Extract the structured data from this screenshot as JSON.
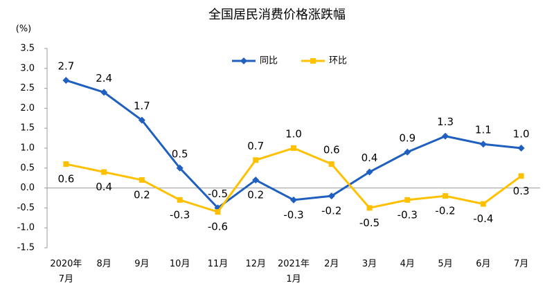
{
  "chart_data": {
    "type": "line",
    "title": "全国居民消费价格涨跌幅",
    "y_label": "(%)",
    "categories": [
      "2020年\n7月",
      "8月",
      "9月",
      "10月",
      "11月",
      "12月",
      "2021年\n1月",
      "2月",
      "3月",
      "4月",
      "5月",
      "6月",
      "7月"
    ],
    "series": [
      {
        "name": "同比",
        "color": "#1f5fc0",
        "marker": "diamond",
        "values": [
          2.7,
          2.4,
          1.7,
          0.5,
          -0.5,
          0.2,
          -0.3,
          -0.2,
          0.4,
          0.9,
          1.3,
          1.1,
          1.0
        ],
        "value_labels": [
          "2.7",
          "2.4",
          "1.7",
          "0.5",
          "-0.5",
          "0.2",
          "-0.3",
          "-0.2",
          "0.4",
          "0.9",
          "1.3",
          "1.1",
          "1.0"
        ]
      },
      {
        "name": "环比",
        "color": "#ffc000",
        "marker": "square",
        "values": [
          0.6,
          0.4,
          0.2,
          -0.3,
          -0.6,
          0.7,
          1.0,
          0.6,
          -0.5,
          -0.3,
          -0.2,
          -0.4,
          0.3
        ],
        "value_labels": [
          "0.6",
          "0.4",
          "0.2",
          "-0.3",
          "-0.6",
          "0.7",
          "1.0",
          "0.6",
          "-0.5",
          "-0.3",
          "-0.2",
          "-0.4",
          "0.3"
        ]
      }
    ],
    "ylim": [
      -1.5,
      3.5
    ],
    "yticks": [
      -1.5,
      {
        "value": -1,
        "label": "-1.0"
      },
      -0.5,
      {
        "value": 0,
        "label": "0.0"
      },
      0.5,
      {
        "value": 1,
        "label": "1.0"
      },
      1.5,
      {
        "value": 2,
        "label": "2.0"
      },
      2.5,
      {
        "value": 3,
        "label": "3.0"
      },
      3.5
    ],
    "legend": "top",
    "grid": false
  }
}
